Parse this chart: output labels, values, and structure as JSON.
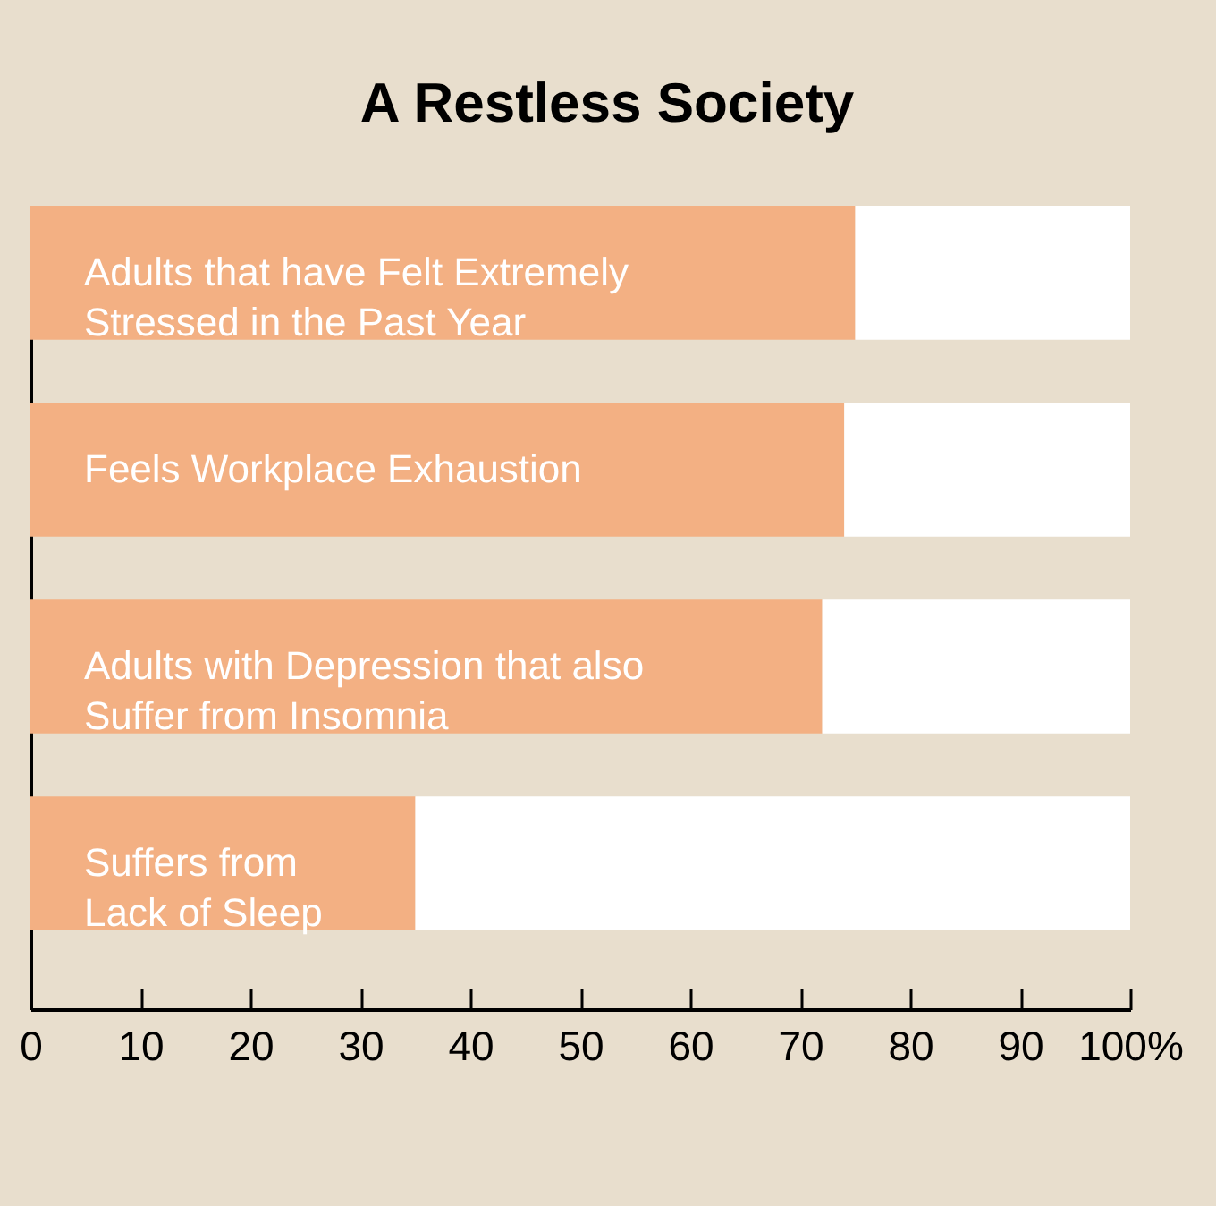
{
  "chart_data": {
    "type": "bar",
    "title": "A Restless Society",
    "orientation": "horizontal",
    "stacked": true,
    "categories": [
      "Adults that have Felt Extremely Stressed in the Past Year",
      "Feels Workplace Exhaustion",
      "Adults with Depression that also Suffer from Insomnia",
      "Suffers from Lack of Sleep"
    ],
    "series": [
      {
        "color": "#f3b083",
        "values": [
          75,
          74,
          72,
          35
        ]
      },
      {
        "color": "#ffffff",
        "values": [
          25,
          26,
          28,
          65
        ]
      }
    ],
    "xlim": [
      0,
      100
    ],
    "xticks": [
      0,
      10,
      20,
      30,
      40,
      50,
      60,
      70,
      80,
      90,
      {
        "value": 100,
        "label": "100%"
      }
    ]
  }
}
